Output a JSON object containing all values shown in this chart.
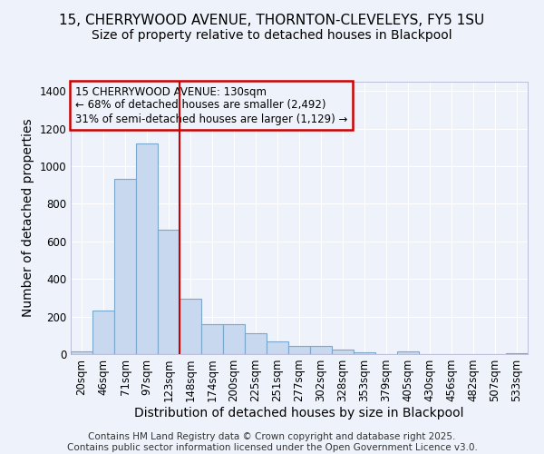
{
  "title1": "15, CHERRYWOOD AVENUE, THORNTON-CLEVELEYS, FY5 1SU",
  "title2": "Size of property relative to detached houses in Blackpool",
  "xlabel": "Distribution of detached houses by size in Blackpool",
  "ylabel": "Number of detached properties",
  "categories": [
    "20sqm",
    "46sqm",
    "71sqm",
    "97sqm",
    "123sqm",
    "148sqm",
    "174sqm",
    "200sqm",
    "225sqm",
    "251sqm",
    "277sqm",
    "302sqm",
    "328sqm",
    "353sqm",
    "379sqm",
    "405sqm",
    "430sqm",
    "456sqm",
    "482sqm",
    "507sqm",
    "533sqm"
  ],
  "values": [
    15,
    230,
    935,
    1120,
    660,
    295,
    160,
    160,
    110,
    70,
    42,
    42,
    22,
    12,
    0,
    14,
    0,
    0,
    0,
    0,
    7
  ],
  "bar_color": "#c8d8ee",
  "bar_edge_color": "#7ba7cc",
  "vline_color": "#cc0000",
  "annotation_title": "15 CHERRYWOOD AVENUE: 130sqm",
  "annotation_line1": "← 68% of detached houses are smaller (2,492)",
  "annotation_line2": "31% of semi-detached houses are larger (1,129) →",
  "annotation_box_color": "#cc0000",
  "ylim": [
    0,
    1450
  ],
  "yticks": [
    0,
    200,
    400,
    600,
    800,
    1000,
    1200,
    1400
  ],
  "footer1": "Contains HM Land Registry data © Crown copyright and database right 2025.",
  "footer2": "Contains public sector information licensed under the Open Government Licence v3.0.",
  "bg_color": "#eef3fb",
  "grid_color": "#ffffff",
  "title_fontsize": 11,
  "subtitle_fontsize": 10,
  "axis_label_fontsize": 10,
  "tick_fontsize": 8.5,
  "annotation_fontsize": 8.5,
  "footer_fontsize": 7.5
}
